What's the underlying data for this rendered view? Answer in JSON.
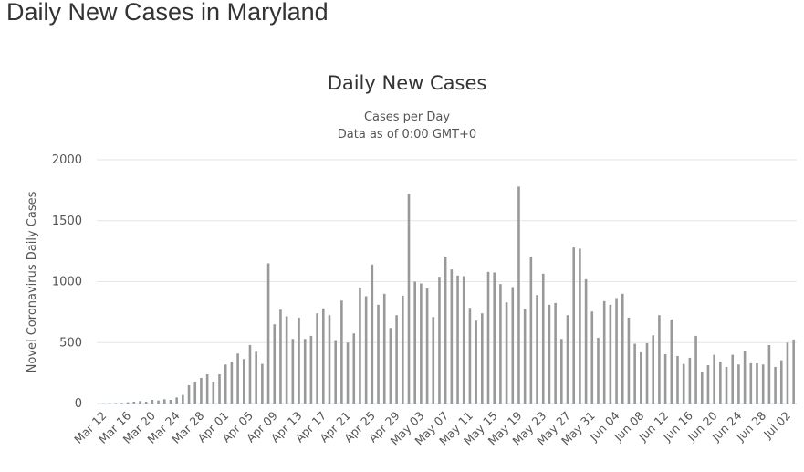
{
  "header": {
    "title": "Daily New Cases in Maryland"
  },
  "chart_data": {
    "type": "bar",
    "title": "Daily New Cases",
    "subtitle": [
      "Cases per Day",
      "Data as of 0:00 GMT+0"
    ],
    "y_label": "Novel Coronavirus Daily Cases",
    "color": "#999999",
    "grid": true,
    "ylim": [
      0,
      2000
    ],
    "yticks": [
      0,
      500,
      1000,
      1500,
      2000
    ],
    "categories": [
      "Mar 12",
      null,
      null,
      null,
      "Mar 16",
      null,
      null,
      null,
      "Mar 20",
      null,
      null,
      null,
      "Mar 24",
      null,
      null,
      null,
      "Mar 28",
      null,
      null,
      null,
      "Apr 01",
      null,
      null,
      null,
      "Apr 05",
      null,
      null,
      null,
      "Apr 09",
      null,
      null,
      null,
      "Apr 13",
      null,
      null,
      null,
      "Apr 17",
      null,
      null,
      null,
      "Apr 21",
      null,
      null,
      null,
      "Apr 25",
      null,
      null,
      null,
      "Apr 29",
      null,
      null,
      null,
      "May 03",
      null,
      null,
      null,
      "May 07",
      null,
      null,
      null,
      "May 11",
      null,
      null,
      null,
      "May 15",
      null,
      null,
      null,
      "May 19",
      null,
      null,
      null,
      "May 23",
      null,
      null,
      null,
      "May 27",
      null,
      null,
      null,
      "May 31",
      null,
      null,
      null,
      "Jun 04",
      null,
      null,
      null,
      "Jun 08",
      null,
      null,
      null,
      "Jun 12",
      null,
      null,
      null,
      "Jun 16",
      null,
      null,
      null,
      "Jun 20",
      null,
      null,
      null,
      "Jun 24",
      null,
      null,
      null,
      "Jun 28",
      null,
      null,
      null,
      "Jul 02",
      null
    ],
    "values": [
      2,
      3,
      4,
      5,
      10,
      15,
      20,
      15,
      30,
      25,
      35,
      30,
      50,
      70,
      150,
      180,
      210,
      240,
      180,
      240,
      320,
      345,
      410,
      365,
      480,
      425,
      325,
      1150,
      650,
      770,
      715,
      530,
      705,
      530,
      555,
      740,
      780,
      725,
      520,
      845,
      500,
      575,
      950,
      880,
      1140,
      810,
      900,
      620,
      725,
      885,
      1720,
      1000,
      985,
      945,
      710,
      1040,
      1205,
      1100,
      1050,
      1045,
      785,
      680,
      740,
      1080,
      1075,
      980,
      830,
      955,
      1780,
      775,
      1205,
      890,
      1065,
      810,
      825,
      530,
      725,
      1280,
      1270,
      1020,
      755,
      540,
      840,
      810,
      865,
      900,
      705,
      490,
      420,
      495,
      560,
      725,
      405,
      690,
      390,
      325,
      375,
      555,
      255,
      315,
      400,
      345,
      300,
      400,
      320,
      435,
      330,
      330,
      320,
      480,
      300,
      355,
      500,
      525
    ]
  }
}
